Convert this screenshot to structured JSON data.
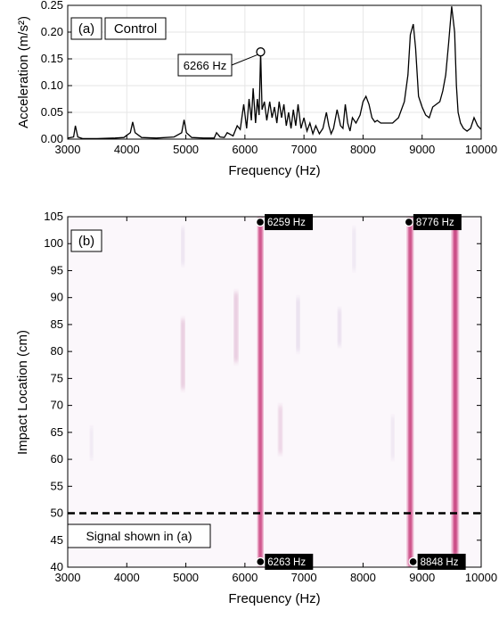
{
  "panel_a": {
    "tag": "(a)",
    "title": "Control",
    "xlabel": "Frequency (Hz)",
    "ylabel": "Acceleration (m/s²)",
    "annotation": {
      "label": "6266 Hz",
      "x": 6266,
      "y": 0.163
    }
  },
  "panel_b": {
    "tag": "(b)",
    "xlabel": "Frequency (Hz)",
    "ylabel": "Impact Location (cm)",
    "signal_label": "Signal shown in (a)",
    "peaks": [
      {
        "label": "6259 Hz",
        "x": 6259,
        "y": 104,
        "pos": "top"
      },
      {
        "label": "8776 Hz",
        "x": 8776,
        "y": 104,
        "pos": "top"
      },
      {
        "label": "6263 Hz",
        "x": 6263,
        "y": 41,
        "pos": "bottom"
      },
      {
        "label": "8848 Hz",
        "x": 8848,
        "y": 41,
        "pos": "bottom"
      }
    ]
  },
  "chart_data": [
    {
      "type": "line",
      "title": "",
      "xlabel": "Frequency (Hz)",
      "ylabel": "Acceleration (m/s²)",
      "xlim": [
        3000,
        10000
      ],
      "ylim": [
        0,
        0.25
      ],
      "xticks": [
        3000,
        4000,
        5000,
        6000,
        7000,
        8000,
        9000,
        10000
      ],
      "yticks": [
        "0.00",
        "0.05",
        "0.10",
        "0.15",
        "0.20",
        "0.25"
      ],
      "grid": true,
      "legend": "none",
      "series": [
        {
          "color": "#000000",
          "x": [
            3000,
            3100,
            3130,
            3170,
            3250,
            3500,
            3800,
            3950,
            4060,
            4100,
            4140,
            4250,
            4500,
            4800,
            4930,
            4970,
            5010,
            5100,
            5300,
            5480,
            5520,
            5580,
            5650,
            5700,
            5800,
            5870,
            5920,
            5980,
            6030,
            6070,
            6110,
            6140,
            6180,
            6210,
            6240,
            6266,
            6290,
            6330,
            6370,
            6420,
            6460,
            6500,
            6540,
            6580,
            6620,
            6660,
            6700,
            6740,
            6780,
            6820,
            6860,
            6900,
            6950,
            7000,
            7050,
            7100,
            7150,
            7200,
            7260,
            7320,
            7380,
            7420,
            7460,
            7500,
            7560,
            7620,
            7660,
            7700,
            7740,
            7780,
            7820,
            7880,
            7950,
            8000,
            8050,
            8100,
            8150,
            8200,
            8240,
            8300,
            8400,
            8500,
            8600,
            8700,
            8760,
            8800,
            8850,
            8890,
            8940,
            9000,
            9060,
            9120,
            9180,
            9240,
            9300,
            9350,
            9400,
            9450,
            9500,
            9550,
            9580,
            9610,
            9650,
            9700,
            9760,
            9820,
            9880,
            9940,
            10000
          ],
          "y": [
            0.002,
            0.004,
            0.025,
            0.004,
            0.001,
            0.001,
            0.002,
            0.003,
            0.012,
            0.032,
            0.012,
            0.003,
            0.002,
            0.004,
            0.012,
            0.036,
            0.012,
            0.003,
            0.002,
            0.002,
            0.012,
            0.004,
            0.003,
            0.012,
            0.006,
            0.025,
            0.018,
            0.065,
            0.02,
            0.075,
            0.035,
            0.095,
            0.03,
            0.075,
            0.045,
            0.163,
            0.055,
            0.07,
            0.035,
            0.07,
            0.04,
            0.06,
            0.03,
            0.07,
            0.04,
            0.065,
            0.025,
            0.05,
            0.02,
            0.055,
            0.025,
            0.065,
            0.02,
            0.04,
            0.015,
            0.03,
            0.01,
            0.025,
            0.01,
            0.02,
            0.05,
            0.025,
            0.01,
            0.02,
            0.055,
            0.025,
            0.02,
            0.065,
            0.03,
            0.015,
            0.04,
            0.03,
            0.045,
            0.07,
            0.08,
            0.065,
            0.04,
            0.032,
            0.035,
            0.03,
            0.03,
            0.03,
            0.04,
            0.07,
            0.12,
            0.195,
            0.215,
            0.17,
            0.08,
            0.06,
            0.045,
            0.04,
            0.06,
            0.065,
            0.07,
            0.09,
            0.12,
            0.18,
            0.248,
            0.2,
            0.1,
            0.05,
            0.03,
            0.02,
            0.015,
            0.02,
            0.04,
            0.025,
            0.018
          ]
        }
      ]
    },
    {
      "type": "heatmap",
      "title": "",
      "xlabel": "Frequency (Hz)",
      "ylabel": "Impact Location (cm)",
      "xlim": [
        3000,
        10000
      ],
      "ylim": [
        40,
        105
      ],
      "xticks": [
        3000,
        4000,
        5000,
        6000,
        7000,
        8000,
        9000,
        10000
      ],
      "yticks": [
        40,
        45,
        50,
        55,
        60,
        65,
        70,
        75,
        80,
        85,
        90,
        95,
        100,
        105
      ],
      "reference_line_y": 50,
      "colors": {
        "low": "#fbf7fb",
        "high": "#c8005a",
        "mid": "#7a4fa0"
      },
      "ridges": [
        {
          "x": 6262,
          "y0": 40,
          "y1": 105,
          "intensity": 0.9,
          "width_hz": 55
        },
        {
          "x": 8800,
          "y0": 40,
          "y1": 105,
          "intensity": 0.85,
          "width_hz": 60
        },
        {
          "x": 9560,
          "y0": 42,
          "y1": 104,
          "intensity": 0.8,
          "width_hz": 70
        },
        {
          "x": 4950,
          "y0": 73,
          "y1": 86,
          "intensity": 0.45,
          "width_hz": 40
        },
        {
          "x": 4950,
          "y0": 96,
          "y1": 103,
          "intensity": 0.25,
          "width_hz": 30
        },
        {
          "x": 5850,
          "y0": 78,
          "y1": 91,
          "intensity": 0.45,
          "width_hz": 40
        },
        {
          "x": 6600,
          "y0": 61,
          "y1": 70,
          "intensity": 0.35,
          "width_hz": 40
        },
        {
          "x": 6900,
          "y0": 80,
          "y1": 90,
          "intensity": 0.25,
          "width_hz": 35
        },
        {
          "x": 7600,
          "y0": 81,
          "y1": 88,
          "intensity": 0.25,
          "width_hz": 35
        },
        {
          "x": 7850,
          "y0": 95,
          "y1": 103,
          "intensity": 0.2,
          "width_hz": 30
        },
        {
          "x": 8500,
          "y0": 60,
          "y1": 68,
          "intensity": 0.2,
          "width_hz": 30
        },
        {
          "x": 3400,
          "y0": 60,
          "y1": 66,
          "intensity": 0.15,
          "width_hz": 30
        }
      ]
    }
  ]
}
